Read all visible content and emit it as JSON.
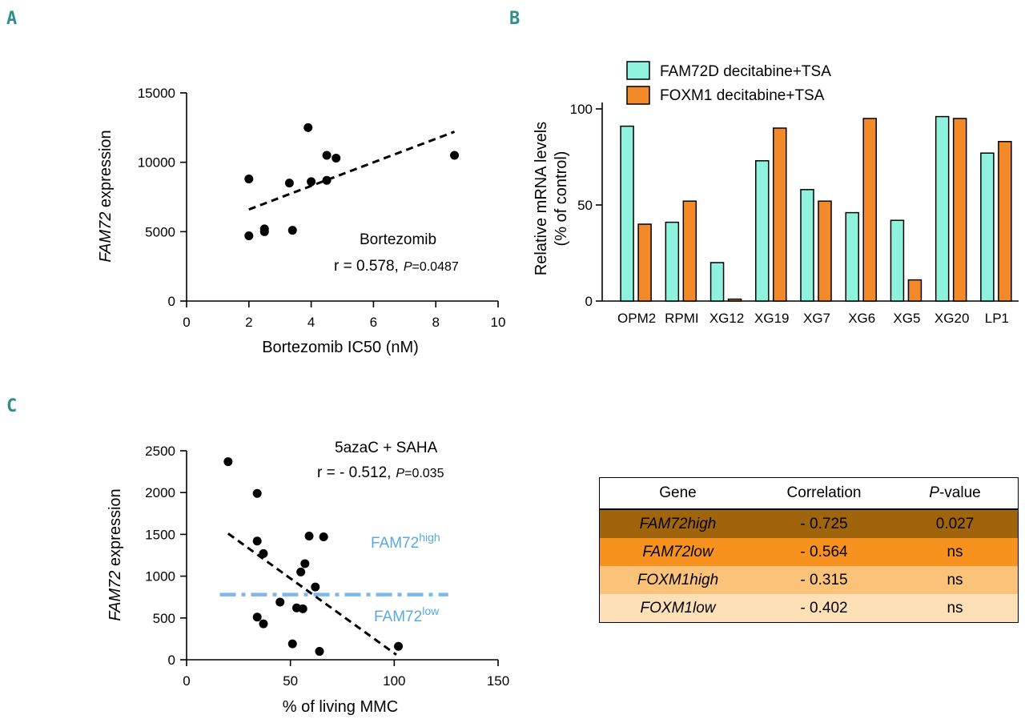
{
  "panels": {
    "a": "A",
    "b": "B",
    "c": "C"
  },
  "chart_data": [
    {
      "type": "scatter",
      "panel": "A",
      "xlabel": "Bortezomib IC50 (nM)",
      "ylabel_italic": "FAM72",
      "ylabel_rest": " expression",
      "xlim": [
        0,
        10
      ],
      "ylim": [
        0,
        15000
      ],
      "xticks": [
        0,
        2,
        4,
        6,
        8,
        10
      ],
      "yticks": [
        0,
        5000,
        10000,
        15000
      ],
      "points": [
        {
          "x": 2.0,
          "y": 8800
        },
        {
          "x": 2.0,
          "y": 4700
        },
        {
          "x": 2.5,
          "y": 5200
        },
        {
          "x": 2.5,
          "y": 5000
        },
        {
          "x": 3.3,
          "y": 8500
        },
        {
          "x": 3.4,
          "y": 5100
        },
        {
          "x": 3.9,
          "y": 12500
        },
        {
          "x": 4.0,
          "y": 8600
        },
        {
          "x": 4.5,
          "y": 10500
        },
        {
          "x": 4.5,
          "y": 8700
        },
        {
          "x": 4.8,
          "y": 10300
        },
        {
          "x": 8.6,
          "y": 10500
        }
      ],
      "trendline": {
        "x": [
          2.0,
          8.6
        ],
        "y": [
          6600,
          12200
        ]
      },
      "annotation_title": "Bortezomib",
      "annotation_r": "r =  0.578,",
      "annotation_p_label": "P",
      "annotation_p_value": "=0.0487"
    },
    {
      "type": "bar",
      "panel": "B",
      "ylabel_line1": "Relative mRNA levels",
      "ylabel_line2": "(% of control)",
      "ylim": [
        0,
        100
      ],
      "yticks": [
        0,
        50,
        100
      ],
      "categories": [
        "OPM2",
        "RPMI",
        "XG12",
        "XG19",
        "XG7",
        "XG6",
        "XG5",
        "XG20",
        "LP1"
      ],
      "series": [
        {
          "name": "FAM72D decitabine+TSA",
          "color": "#8ef2dc",
          "values": [
            91,
            41,
            20,
            73,
            58,
            46,
            42,
            96,
            77
          ]
        },
        {
          "name": "FOXM1 decitabine+TSA",
          "color": "#f28a2a",
          "values": [
            40,
            52,
            1,
            90,
            52,
            95,
            11,
            95,
            83
          ]
        }
      ]
    },
    {
      "type": "scatter",
      "panel": "C",
      "xlabel": "% of living MMC",
      "ylabel_italic": "FAM72",
      "ylabel_rest": " expression",
      "xlim": [
        0,
        150
      ],
      "ylim": [
        0,
        2500
      ],
      "xticks": [
        0,
        50,
        100,
        150
      ],
      "yticks": [
        0,
        500,
        1000,
        1500,
        2000,
        2500
      ],
      "points": [
        {
          "x": 20,
          "y": 2370
        },
        {
          "x": 34,
          "y": 1990
        },
        {
          "x": 34,
          "y": 1420
        },
        {
          "x": 37,
          "y": 1270
        },
        {
          "x": 34,
          "y": 510
        },
        {
          "x": 37,
          "y": 430
        },
        {
          "x": 45,
          "y": 690
        },
        {
          "x": 51,
          "y": 190
        },
        {
          "x": 53,
          "y": 620
        },
        {
          "x": 55,
          "y": 1050
        },
        {
          "x": 56,
          "y": 610
        },
        {
          "x": 57,
          "y": 1150
        },
        {
          "x": 59,
          "y": 1480
        },
        {
          "x": 62,
          "y": 870
        },
        {
          "x": 64,
          "y": 100
        },
        {
          "x": 66,
          "y": 1470
        },
        {
          "x": 102,
          "y": 160
        }
      ],
      "trendline": {
        "x": [
          20,
          101
        ],
        "y": [
          1510,
          60
        ]
      },
      "threshold": {
        "y": 780,
        "x": [
          16,
          126
        ],
        "color": "#7db8e8"
      },
      "annotation_title": "5azaC + SAHA",
      "annotation_r": "r =  - 0.512,",
      "annotation_p_label": "P",
      "annotation_p_value": "=0.035",
      "label_high_base": "FAM72",
      "label_high_sup": "high",
      "label_low_base": "FAM72",
      "label_low_sup": "low"
    },
    {
      "type": "table",
      "panel": "C",
      "headers": [
        "Gene",
        "Correlation",
        "P",
        "-value"
      ],
      "rows": [
        {
          "gene": "FAM72high",
          "corr": "- 0.725",
          "p": "0.027",
          "bg": "#a0640c"
        },
        {
          "gene": "FAM72low",
          "corr": "- 0.564",
          "p": "ns",
          "bg": "#f7921e"
        },
        {
          "gene": "FOXM1high",
          "corr": "- 0.315",
          "p": "ns",
          "bg": "#fbc27a"
        },
        {
          "gene": "FOXM1low",
          "corr": "- 0.402",
          "p": "ns",
          "bg": "#fde0b5"
        }
      ]
    }
  ]
}
